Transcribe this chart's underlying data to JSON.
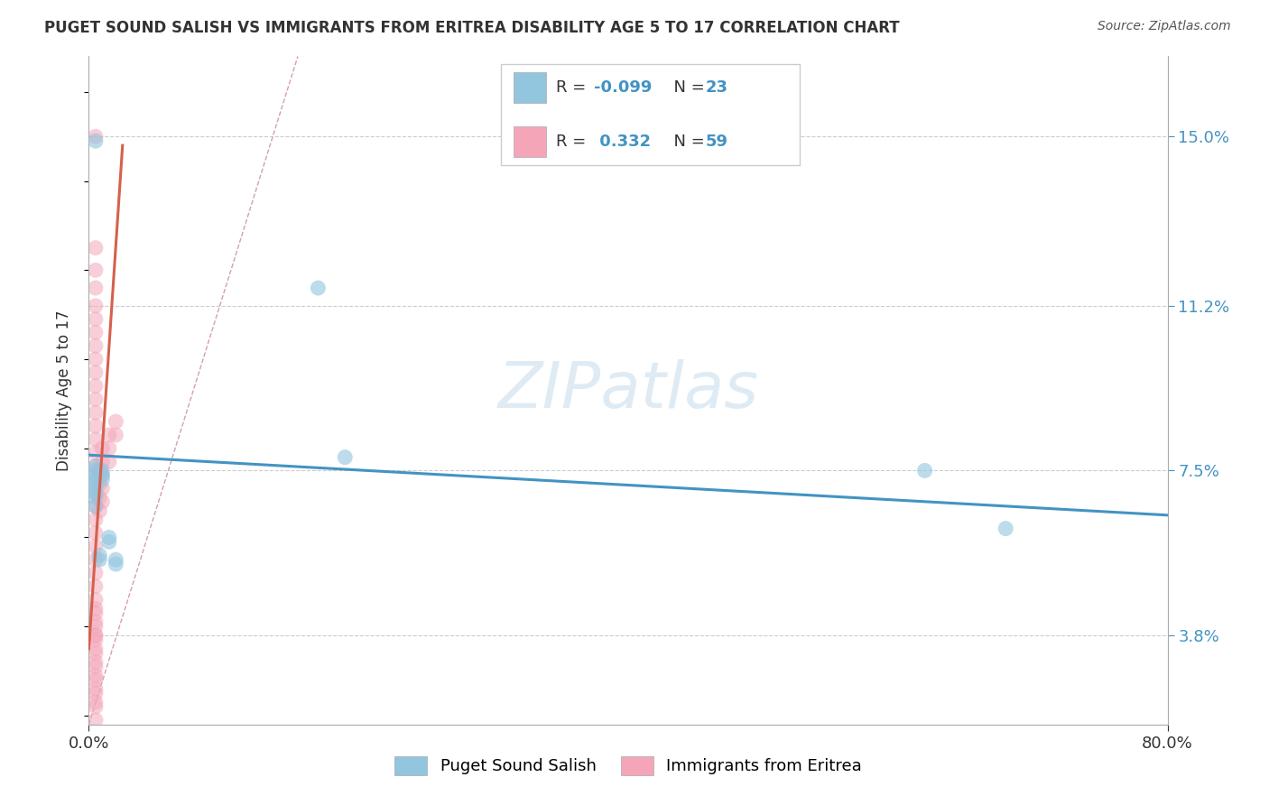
{
  "title": "PUGET SOUND SALISH VS IMMIGRANTS FROM ERITREA DISABILITY AGE 5 TO 17 CORRELATION CHART",
  "source": "Source: ZipAtlas.com",
  "ylabel": "Disability Age 5 to 17",
  "y_tick_labels_right": [
    "3.8%",
    "7.5%",
    "11.2%",
    "15.0%"
  ],
  "y_tick_values_right": [
    0.038,
    0.075,
    0.112,
    0.15
  ],
  "xlim": [
    0.0,
    0.8
  ],
  "ylim": [
    0.018,
    0.168
  ],
  "color_blue": "#92c5de",
  "color_pink": "#f4a6b8",
  "color_blue_line": "#4393c3",
  "color_pink_line": "#d6604d",
  "color_diag": "#cccccc",
  "background_color": "#ffffff",
  "grid_color": "#cccccc",
  "title_color": "#333333",
  "legend_bottom": [
    "Puget Sound Salish",
    "Immigrants from Eritrea"
  ],
  "blue_r": "-0.099",
  "blue_n": "23",
  "pink_r": "0.332",
  "pink_n": "59",
  "watermark_text": "ZIPatlas",
  "blue_points_x": [
    0.005,
    0.005,
    0.005,
    0.005,
    0.005,
    0.005,
    0.005,
    0.005,
    0.005,
    0.005,
    0.008,
    0.008,
    0.01,
    0.01,
    0.01,
    0.015,
    0.015,
    0.02,
    0.02,
    0.17,
    0.19,
    0.62,
    0.68
  ],
  "blue_points_y": [
    0.149,
    0.076,
    0.075,
    0.074,
    0.073,
    0.072,
    0.071,
    0.07,
    0.069,
    0.067,
    0.056,
    0.055,
    0.075,
    0.074,
    0.073,
    0.06,
    0.059,
    0.055,
    0.054,
    0.116,
    0.078,
    0.075,
    0.062
  ],
  "pink_points_x": [
    0.005,
    0.005,
    0.005,
    0.005,
    0.005,
    0.005,
    0.005,
    0.005,
    0.005,
    0.005,
    0.005,
    0.005,
    0.005,
    0.005,
    0.005,
    0.005,
    0.005,
    0.005,
    0.005,
    0.005,
    0.005,
    0.005,
    0.005,
    0.005,
    0.005,
    0.005,
    0.005,
    0.005,
    0.005,
    0.005,
    0.005,
    0.005,
    0.005,
    0.005,
    0.005,
    0.005,
    0.005,
    0.005,
    0.005,
    0.005,
    0.005,
    0.005,
    0.005,
    0.005,
    0.005,
    0.008,
    0.008,
    0.008,
    0.008,
    0.01,
    0.01,
    0.01,
    0.01,
    0.01,
    0.015,
    0.015,
    0.015,
    0.02,
    0.02
  ],
  "pink_points_y": [
    0.15,
    0.125,
    0.12,
    0.116,
    0.112,
    0.109,
    0.106,
    0.103,
    0.1,
    0.097,
    0.094,
    0.091,
    0.088,
    0.085,
    0.082,
    0.079,
    0.076,
    0.073,
    0.07,
    0.067,
    0.064,
    0.061,
    0.058,
    0.055,
    0.052,
    0.049,
    0.046,
    0.043,
    0.04,
    0.037,
    0.034,
    0.031,
    0.028,
    0.025,
    0.022,
    0.019,
    0.038,
    0.035,
    0.032,
    0.029,
    0.026,
    0.023,
    0.044,
    0.041,
    0.038,
    0.075,
    0.072,
    0.069,
    0.066,
    0.08,
    0.077,
    0.074,
    0.071,
    0.068,
    0.083,
    0.08,
    0.077,
    0.086,
    0.083
  ],
  "blue_line_x": [
    0.0,
    0.8
  ],
  "blue_line_y": [
    0.0785,
    0.065
  ],
  "pink_line_x": [
    0.0,
    0.025
  ],
  "pink_line_y": [
    0.035,
    0.148
  ],
  "diag_line_x": [
    0.0,
    0.155
  ],
  "diag_line_y": [
    0.018,
    0.168
  ]
}
